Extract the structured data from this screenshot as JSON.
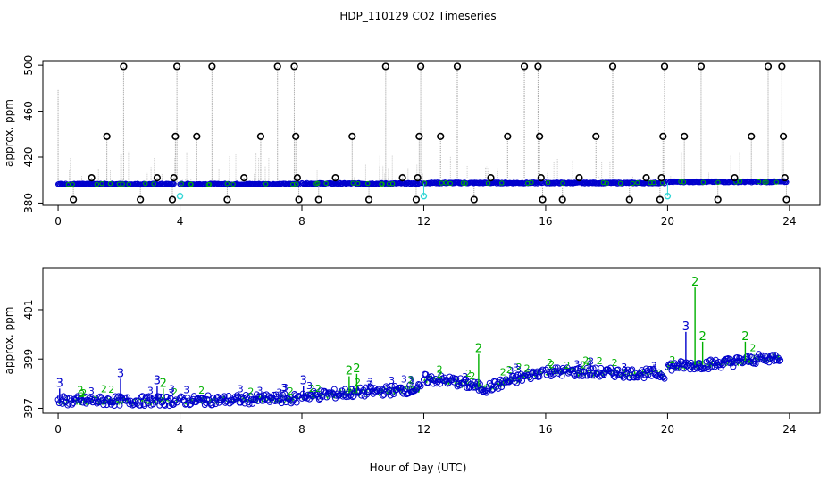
{
  "title": "HDP_110129  CO2 Timeseries",
  "xlabel": "Hour of Day (UTC)",
  "colors": {
    "outlier": "#000000",
    "primary": "#0000cc",
    "secondary": "#00b000",
    "flag": "#33d6d6",
    "line": "#999999"
  },
  "chart_data": [
    {
      "type": "scatter",
      "panel": "top",
      "ylabel": "approx. ppm",
      "xlim": [
        -0.5,
        25
      ],
      "ylim": [
        378,
        504
      ],
      "xticks": [
        0,
        4,
        8,
        12,
        16,
        20,
        24
      ],
      "yticks": [
        380,
        420,
        460,
        500
      ],
      "baseline_segments": [
        {
          "x0": 0.0,
          "x1": 3.8,
          "y": 396.5
        },
        {
          "x0": 4.0,
          "x1": 7.9,
          "y": 396.5
        },
        {
          "x0": 8.0,
          "x1": 11.9,
          "y": 397.0
        },
        {
          "x0": 12.0,
          "x1": 15.9,
          "y": 397.5
        },
        {
          "x0": 16.0,
          "x1": 19.9,
          "y": 397.5
        },
        {
          "x0": 20.0,
          "x1": 23.9,
          "y": 398.5
        }
      ],
      "outliers": [
        [
          0.5,
          383
        ],
        [
          1.1,
          402
        ],
        [
          1.6,
          438
        ],
        [
          2.15,
          499
        ],
        [
          2.7,
          383
        ],
        [
          3.25,
          402
        ],
        [
          3.75,
          383
        ],
        [
          3.8,
          402
        ],
        [
          3.85,
          438
        ],
        [
          3.9,
          499
        ],
        [
          4.55,
          438
        ],
        [
          5.05,
          499
        ],
        [
          5.55,
          383
        ],
        [
          6.1,
          402
        ],
        [
          6.65,
          438
        ],
        [
          7.2,
          499
        ],
        [
          7.75,
          499
        ],
        [
          7.8,
          438
        ],
        [
          7.85,
          402
        ],
        [
          7.9,
          383
        ],
        [
          8.55,
          383
        ],
        [
          9.1,
          402
        ],
        [
          9.65,
          438
        ],
        [
          10.2,
          383
        ],
        [
          10.75,
          499
        ],
        [
          11.3,
          402
        ],
        [
          11.75,
          383
        ],
        [
          11.8,
          402
        ],
        [
          11.85,
          438
        ],
        [
          11.9,
          499
        ],
        [
          12.55,
          438
        ],
        [
          13.1,
          499
        ],
        [
          13.65,
          383
        ],
        [
          14.2,
          402
        ],
        [
          14.75,
          438
        ],
        [
          15.3,
          499
        ],
        [
          15.75,
          499
        ],
        [
          15.8,
          438
        ],
        [
          15.85,
          402
        ],
        [
          15.9,
          383
        ],
        [
          16.55,
          383
        ],
        [
          17.1,
          402
        ],
        [
          17.65,
          438
        ],
        [
          18.2,
          499
        ],
        [
          18.75,
          383
        ],
        [
          19.3,
          402
        ],
        [
          19.75,
          383
        ],
        [
          19.8,
          402
        ],
        [
          19.85,
          438
        ],
        [
          19.9,
          499
        ],
        [
          20.55,
          438
        ],
        [
          21.1,
          499
        ],
        [
          21.65,
          383
        ],
        [
          22.2,
          402
        ],
        [
          22.75,
          438
        ],
        [
          23.3,
          499
        ],
        [
          23.75,
          499
        ],
        [
          23.8,
          438
        ],
        [
          23.85,
          402
        ],
        [
          23.9,
          383
        ]
      ],
      "flags": [
        [
          4.0,
          386
        ],
        [
          12.0,
          386
        ],
        [
          20.0,
          386
        ]
      ],
      "spikes": [
        [
          0.0,
          479
        ]
      ]
    },
    {
      "type": "scatter",
      "panel": "bottom",
      "ylabel": "approx. ppm",
      "xlim": [
        -0.5,
        25
      ],
      "ylim": [
        396.8,
        402.7
      ],
      "xticks": [
        0,
        4,
        8,
        12,
        16,
        20,
        24
      ],
      "yticks": [
        397,
        399,
        401
      ],
      "series": [
        {
          "marker": "3",
          "color": "#0000cc"
        },
        {
          "marker": "2",
          "color": "#00b000"
        }
      ],
      "trend": [
        [
          0.0,
          397.3
        ],
        [
          3.9,
          397.3
        ],
        [
          4.0,
          397.3
        ],
        [
          7.9,
          397.4
        ],
        [
          8.0,
          397.5
        ],
        [
          11.9,
          397.8
        ],
        [
          12.0,
          398.2
        ],
        [
          13.0,
          398.1
        ],
        [
          14.0,
          397.8
        ],
        [
          15.9,
          398.5
        ],
        [
          16.0,
          398.5
        ],
        [
          19.9,
          398.4
        ],
        [
          20.0,
          398.7
        ],
        [
          21.5,
          398.8
        ],
        [
          23.7,
          399.1
        ]
      ],
      "peaks": [
        {
          "marker": "3",
          "x": 0.05,
          "y": 397.8
        },
        {
          "marker": "3",
          "x": 2.05,
          "y": 398.2
        },
        {
          "marker": "3",
          "x": 3.25,
          "y": 397.9
        },
        {
          "marker": "2",
          "x": 3.45,
          "y": 397.8
        },
        {
          "marker": "3",
          "x": 8.05,
          "y": 397.9
        },
        {
          "marker": "2",
          "x": 9.55,
          "y": 398.3
        },
        {
          "marker": "2",
          "x": 9.8,
          "y": 398.4
        },
        {
          "marker": "2",
          "x": 13.8,
          "y": 399.2
        },
        {
          "marker": "3",
          "x": 20.6,
          "y": 400.1
        },
        {
          "marker": "2",
          "x": 20.9,
          "y": 401.9
        },
        {
          "marker": "2",
          "x": 21.15,
          "y": 399.7
        },
        {
          "marker": "2",
          "x": 22.55,
          "y": 399.7
        }
      ]
    }
  ]
}
